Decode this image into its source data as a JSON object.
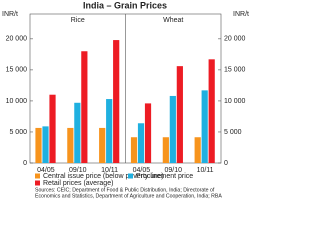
{
  "title": "India – Grain Prices",
  "legend": [
    {
      "series": 0,
      "position": "bottom"
    }
  ],
  "source": [
    "Sources: CEIC; Department of Food & Public Distribution, India; Directorate of",
    "Economics and Statistics, Department of Agriculture and Cooperation, India; RBA"
  ],
  "chart_data": [
    {
      "type": "bar",
      "title": "Rice",
      "ylabel": "INR/t",
      "categories": [
        "04/05",
        "09/10",
        "10/11"
      ],
      "series": [
        {
          "name": "Central issue price (below poverty line)",
          "color": "#f7941d",
          "values": [
            5650,
            5650,
            5650
          ]
        },
        {
          "name": "Procurement price",
          "color": "#1fb0e0",
          "values": [
            5900,
            9700,
            10300
          ]
        },
        {
          "name": "Retail prices (average)",
          "color": "#ed1c24",
          "values": [
            11000,
            18000,
            19800
          ]
        }
      ],
      "ylim": [
        0,
        24000
      ],
      "yticks": [
        0,
        {
          "value": 5000,
          "label": "5 000"
        },
        {
          "value": 10000,
          "label": "10 000"
        },
        {
          "value": 15000,
          "label": "15 000"
        },
        {
          "value": 20000,
          "label": "20 000"
        }
      ],
      "tick_side": "left"
    },
    {
      "type": "bar",
      "title": "Wheat",
      "ylabel": "INR/t",
      "categories": [
        "04/05",
        "09/10",
        "10/11"
      ],
      "series": [
        {
          "color": "#f7941d",
          "values": [
            4150,
            4150,
            4150
          ]
        },
        {
          "color": "#1fb0e0",
          "values": [
            6400,
            10800,
            11700
          ]
        },
        {
          "color": "#ed1c24",
          "values": [
            9600,
            15600,
            16700
          ]
        }
      ],
      "ylim": [
        0,
        24000
      ],
      "yticks": [
        0,
        {
          "value": 5000,
          "label": "5 000"
        },
        {
          "value": 10000,
          "label": "10 000"
        },
        {
          "value": 15000,
          "label": "15 000"
        },
        {
          "value": 20000,
          "label": "20 000"
        }
      ],
      "tick_side": "right"
    }
  ]
}
